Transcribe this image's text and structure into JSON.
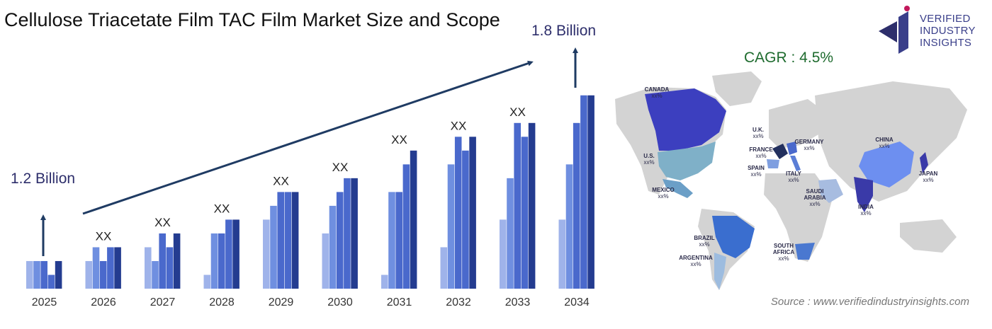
{
  "title": "Cellulose Triacetate Film TAC Film Market Size and Scope",
  "cagr": "CAGR : 4.5%",
  "logo": {
    "line1": "VERIFIED",
    "line2": "INDUSTRY",
    "line3": "INSIGHTS"
  },
  "source": "Source : www.verifiedindustryinsights.com",
  "colors": {
    "c1": "#9fb3ea",
    "c2": "#6f8fe0",
    "c3": "#4a69cc",
    "c4": "#243c90",
    "arrow": "#1f3b63",
    "label": "#2d2e6b"
  },
  "chart_data": {
    "type": "bar",
    "categories": [
      "2025",
      "2026",
      "2027",
      "2028",
      "2029",
      "2030",
      "2031",
      "2032",
      "2033",
      "2034"
    ],
    "series": [
      {
        "values": [
          2,
          2,
          3,
          1,
          5,
          4,
          1,
          3,
          5,
          5
        ]
      },
      {
        "values": [
          2,
          3,
          2,
          4,
          6,
          6,
          7,
          9,
          8,
          9
        ]
      },
      {
        "values": [
          2,
          2,
          4,
          4,
          7,
          7,
          7,
          11,
          12,
          12
        ]
      },
      {
        "values": [
          1,
          3,
          3,
          5,
          7,
          8,
          9,
          10,
          11,
          14
        ]
      },
      {
        "values": [
          2,
          3,
          4,
          5,
          7,
          8,
          10,
          11,
          12,
          14
        ]
      }
    ],
    "bar_labels": [
      "",
      "XX",
      "XX",
      "XX",
      "XX",
      "XX",
      "XX",
      "XX",
      "XX",
      ""
    ],
    "start_label": "1.2 Billion",
    "end_label": "1.8 Billion",
    "xlabel": "",
    "ylabel": "",
    "ylim": [
      0,
      14.5
    ]
  },
  "map": {
    "regions": [
      {
        "name": "CANADA",
        "value": "xx%"
      },
      {
        "name": "U.S.",
        "value": "xx%"
      },
      {
        "name": "MEXICO",
        "value": "xx%"
      },
      {
        "name": "BRAZIL",
        "value": "xx%"
      },
      {
        "name": "ARGENTINA",
        "value": "xx%"
      },
      {
        "name": "U.K.",
        "value": "xx%"
      },
      {
        "name": "FRANCE",
        "value": "xx%"
      },
      {
        "name": "GERMANY",
        "value": "xx%"
      },
      {
        "name": "SPAIN",
        "value": "xx%"
      },
      {
        "name": "ITALY",
        "value": "xx%"
      },
      {
        "name": "SAUDI ARABIA",
        "value": "xx%"
      },
      {
        "name": "SOUTH AFRICA",
        "value": "xx%"
      },
      {
        "name": "CHINA",
        "value": "xx%"
      },
      {
        "name": "INDIA",
        "value": "xx%"
      },
      {
        "name": "JAPAN",
        "value": "xx%"
      }
    ]
  }
}
